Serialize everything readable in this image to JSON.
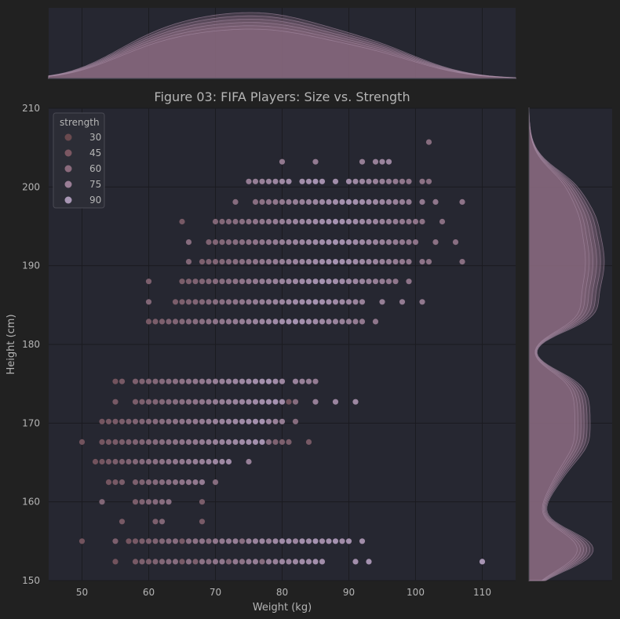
{
  "chart_data": {
    "type": "scatter",
    "title": "Figure 03: FIFA Players: Size vs. Strength",
    "xlabel": "Weight (kg)",
    "ylabel": "Height (cm)",
    "xlim": [
      45,
      115
    ],
    "ylim": [
      150,
      210
    ],
    "xticks": [
      50,
      60,
      70,
      80,
      90,
      100,
      110
    ],
    "yticks": [
      150,
      160,
      170,
      180,
      190,
      200,
      210
    ],
    "grid": true,
    "legend": {
      "title": "strength",
      "placement": "top-left",
      "entries": [
        {
          "label": "30",
          "color": "#6a4a4f"
        },
        {
          "label": "45",
          "color": "#7b5762"
        },
        {
          "label": "60",
          "color": "#8a6a7c"
        },
        {
          "label": "75",
          "color": "#9a7e96"
        },
        {
          "label": "90",
          "color": "#a896b4"
        }
      ]
    },
    "marginals": {
      "top": "kde of weight",
      "right": "kde of height"
    },
    "colors": {
      "background": "#212121",
      "axes_background": "#262731",
      "text": "#b5b5b5",
      "grid": "#1b1b20",
      "kde_fill": "#8a6a80"
    },
    "rows": [
      {
        "h": 152.4,
        "x": [
          55,
          58,
          59,
          60,
          61,
          62,
          63,
          64,
          65,
          66,
          67,
          68,
          69,
          70,
          71,
          72,
          73,
          74,
          75,
          76,
          77,
          78,
          79,
          80,
          81,
          82,
          83,
          84,
          85,
          86,
          91,
          93,
          110
        ],
        "s": [
          40,
          45,
          50,
          48,
          52,
          55,
          58,
          60,
          46,
          62,
          50,
          64,
          60,
          66,
          68,
          55,
          70,
          65,
          72,
          74,
          60,
          75,
          76,
          80,
          78,
          82,
          85,
          84,
          88,
          86,
          88,
          90,
          92
        ]
      },
      {
        "h": 155,
        "x": [
          50,
          55,
          57,
          58,
          59,
          60,
          61,
          62,
          63,
          64,
          65,
          66,
          67,
          68,
          69,
          70,
          71,
          72,
          73,
          74,
          75,
          76,
          77,
          78,
          79,
          80,
          81,
          82,
          83,
          84,
          85,
          86,
          87,
          88,
          89,
          90,
          92
        ],
        "s": [
          40,
          50,
          42,
          45,
          48,
          50,
          52,
          55,
          58,
          60,
          46,
          62,
          64,
          66,
          60,
          68,
          70,
          72,
          74,
          62,
          76,
          78,
          80,
          75,
          82,
          84,
          86,
          80,
          88,
          86,
          90,
          85,
          88,
          90,
          84,
          88,
          86
        ]
      },
      {
        "h": 157.5,
        "x": [
          56,
          61,
          62
        ],
        "s": [
          45,
          50,
          55
        ]
      },
      {
        "h": 157.5,
        "x": [
          68
        ],
        "s": [
          46
        ]
      },
      {
        "h": 160,
        "x": [
          53,
          58,
          59,
          60,
          61,
          62,
          63,
          68
        ],
        "s": [
          55,
          48,
          52,
          55,
          58,
          60,
          62,
          48
        ]
      },
      {
        "h": 162.5,
        "x": [
          54,
          55,
          56,
          58,
          59,
          60,
          61,
          62,
          63,
          64,
          65,
          66,
          67,
          68,
          70
        ],
        "s": [
          42,
          45,
          48,
          50,
          52,
          55,
          58,
          60,
          62,
          64,
          66,
          68,
          70,
          72,
          60
        ]
      },
      {
        "h": 165.1,
        "x": [
          52,
          53,
          54,
          55,
          56,
          57,
          58,
          59,
          60,
          61,
          62,
          63,
          64,
          65,
          66,
          67,
          68,
          69,
          70,
          71,
          72,
          75
        ],
        "s": [
          40,
          42,
          45,
          48,
          50,
          52,
          55,
          58,
          60,
          62,
          64,
          66,
          68,
          70,
          72,
          74,
          76,
          78,
          80,
          82,
          84,
          75
        ]
      },
      {
        "h": 167.6,
        "x": [
          50,
          53,
          54,
          55,
          56,
          57,
          58,
          59,
          60,
          61,
          62,
          63,
          64,
          65,
          66,
          67,
          68,
          69,
          70,
          71,
          72,
          73,
          74,
          75,
          76,
          77,
          78,
          79,
          80,
          81,
          84
        ],
        "s": [
          40,
          42,
          44,
          46,
          48,
          50,
          52,
          54,
          56,
          58,
          60,
          62,
          64,
          66,
          68,
          70,
          72,
          74,
          76,
          78,
          80,
          82,
          84,
          86,
          88,
          90,
          60,
          52,
          50,
          48,
          45
        ]
      },
      {
        "h": 170.2,
        "x": [
          53,
          54,
          55,
          56,
          57,
          58,
          59,
          60,
          61,
          62,
          63,
          64,
          65,
          66,
          67,
          68,
          69,
          70,
          71,
          72,
          73,
          74,
          75,
          76,
          77,
          78,
          79,
          80,
          82
        ],
        "s": [
          42,
          44,
          46,
          48,
          50,
          52,
          54,
          56,
          58,
          60,
          62,
          64,
          66,
          68,
          70,
          72,
          74,
          76,
          78,
          80,
          82,
          84,
          86,
          88,
          90,
          80,
          76,
          72,
          60
        ]
      },
      {
        "h": 172.7,
        "x": [
          55,
          58,
          59,
          60,
          61,
          62,
          63,
          64,
          65,
          66,
          67,
          68,
          69,
          70,
          71,
          72,
          73,
          74,
          75,
          76,
          77,
          78,
          79,
          80,
          81,
          82,
          85,
          88,
          91
        ],
        "s": [
          45,
          48,
          50,
          52,
          54,
          56,
          58,
          60,
          62,
          64,
          66,
          68,
          70,
          72,
          74,
          76,
          78,
          80,
          82,
          84,
          86,
          88,
          90,
          85,
          40,
          60,
          75,
          80,
          82
        ]
      },
      {
        "h": 175.3,
        "x": [
          55,
          56,
          58,
          59,
          60,
          61,
          62,
          63,
          64,
          65,
          66,
          67,
          68,
          69,
          70,
          71,
          72,
          73,
          74,
          75,
          76,
          77,
          78,
          79,
          80,
          82,
          83,
          84,
          85
        ],
        "s": [
          40,
          45,
          50,
          52,
          54,
          56,
          58,
          60,
          62,
          64,
          66,
          68,
          70,
          72,
          74,
          76,
          78,
          80,
          82,
          84,
          86,
          88,
          90,
          85,
          80,
          78,
          76,
          74,
          72
        ]
      },
      {
        "h": 182.9,
        "x": [
          60,
          61,
          62,
          63,
          64,
          65,
          66,
          67,
          68,
          69,
          70,
          71,
          72,
          73,
          74,
          75,
          76,
          77,
          78,
          79,
          80,
          81,
          82,
          83,
          84,
          85,
          86,
          87,
          88,
          89,
          90,
          91,
          92,
          94
        ],
        "s": [
          45,
          48,
          50,
          52,
          54,
          56,
          58,
          60,
          62,
          64,
          66,
          68,
          70,
          72,
          74,
          76,
          78,
          80,
          82,
          84,
          86,
          88,
          90,
          88,
          86,
          84,
          82,
          80,
          78,
          76,
          74,
          72,
          70,
          68
        ]
      },
      {
        "h": 185.4,
        "x": [
          60,
          64,
          65,
          66,
          67,
          68,
          69,
          70,
          71,
          72,
          73,
          74,
          75,
          76,
          77,
          78,
          79,
          80,
          81,
          82,
          83,
          84,
          85,
          86,
          87,
          88,
          89,
          90,
          91,
          92,
          95,
          98,
          101
        ],
        "s": [
          55,
          48,
          50,
          52,
          54,
          56,
          58,
          60,
          62,
          64,
          66,
          68,
          70,
          72,
          74,
          76,
          78,
          80,
          82,
          84,
          86,
          88,
          90,
          88,
          86,
          84,
          82,
          80,
          78,
          76,
          74,
          72,
          70
        ]
      },
      {
        "h": 188,
        "x": [
          60,
          65,
          66,
          67,
          68,
          69,
          70,
          71,
          72,
          73,
          74,
          75,
          76,
          77,
          78,
          79,
          80,
          81,
          82,
          83,
          84,
          85,
          86,
          87,
          88,
          89,
          90,
          91,
          92,
          93,
          94,
          95,
          96,
          97,
          99
        ],
        "s": [
          50,
          48,
          50,
          52,
          54,
          56,
          58,
          60,
          62,
          64,
          66,
          68,
          70,
          72,
          74,
          76,
          78,
          80,
          82,
          84,
          86,
          88,
          90,
          88,
          86,
          84,
          82,
          80,
          78,
          76,
          74,
          72,
          70,
          68,
          66
        ]
      },
      {
        "h": 190.5,
        "x": [
          66,
          68,
          69,
          70,
          71,
          72,
          73,
          74,
          75,
          76,
          77,
          78,
          79,
          80,
          81,
          82,
          83,
          84,
          85,
          86,
          87,
          88,
          89,
          90,
          91,
          92,
          93,
          94,
          95,
          96,
          97,
          98,
          99,
          101,
          102,
          107
        ],
        "s": [
          55,
          50,
          52,
          54,
          56,
          58,
          60,
          62,
          64,
          66,
          68,
          70,
          72,
          74,
          76,
          78,
          80,
          82,
          84,
          86,
          88,
          90,
          88,
          86,
          84,
          82,
          80,
          78,
          76,
          74,
          72,
          70,
          68,
          66,
          64,
          62
        ]
      },
      {
        "h": 193,
        "x": [
          66,
          69,
          70,
          71,
          72,
          73,
          74,
          75,
          76,
          77,
          78,
          79,
          80,
          81,
          82,
          83,
          84,
          85,
          86,
          87,
          88,
          89,
          90,
          91,
          92,
          93,
          94,
          95,
          96,
          97,
          98,
          99,
          100,
          103,
          106
        ],
        "s": [
          60,
          52,
          54,
          56,
          58,
          60,
          62,
          64,
          66,
          68,
          70,
          72,
          74,
          76,
          78,
          80,
          82,
          84,
          86,
          88,
          90,
          88,
          86,
          84,
          82,
          80,
          78,
          76,
          74,
          72,
          70,
          68,
          66,
          64,
          62
        ]
      },
      {
        "h": 195.6,
        "x": [
          65,
          70,
          71,
          72,
          73,
          74,
          75,
          76,
          77,
          78,
          79,
          80,
          81,
          82,
          83,
          84,
          85,
          86,
          87,
          88,
          89,
          90,
          91,
          92,
          93,
          94,
          95,
          96,
          97,
          98,
          99,
          100,
          101,
          104
        ],
        "s": [
          45,
          55,
          56,
          58,
          60,
          62,
          64,
          66,
          68,
          70,
          72,
          74,
          76,
          78,
          80,
          82,
          84,
          86,
          88,
          90,
          88,
          86,
          84,
          82,
          80,
          78,
          76,
          74,
          72,
          70,
          68,
          66,
          64,
          62
        ]
      },
      {
        "h": 198.1,
        "x": [
          73,
          76,
          77,
          78,
          79,
          80,
          81,
          82,
          83,
          84,
          85,
          86,
          87,
          88,
          89,
          90,
          91,
          92,
          93,
          94,
          95,
          96,
          97,
          98,
          99,
          101,
          103,
          107
        ],
        "s": [
          60,
          62,
          64,
          66,
          68,
          70,
          72,
          74,
          76,
          78,
          80,
          82,
          84,
          86,
          88,
          90,
          88,
          86,
          84,
          82,
          80,
          78,
          76,
          74,
          72,
          70,
          68,
          66
        ]
      },
      {
        "h": 200.7,
        "x": [
          75,
          76,
          77,
          78,
          79,
          80,
          81,
          83,
          84,
          85,
          86,
          88,
          90,
          91,
          92,
          93,
          94,
          95,
          96,
          97,
          98,
          99,
          101,
          102
        ],
        "s": [
          72,
          74,
          76,
          78,
          80,
          82,
          84,
          86,
          88,
          90,
          88,
          86,
          84,
          82,
          80,
          78,
          76,
          74,
          72,
          70,
          68,
          66,
          64,
          62
        ]
      },
      {
        "h": 203.2,
        "x": [
          80,
          85,
          92,
          94,
          95,
          96
        ],
        "s": [
          70,
          72,
          74,
          76,
          78,
          80
        ]
      },
      {
        "h": 205.7,
        "x": [
          102
        ],
        "s": [
          60
        ]
      }
    ]
  }
}
